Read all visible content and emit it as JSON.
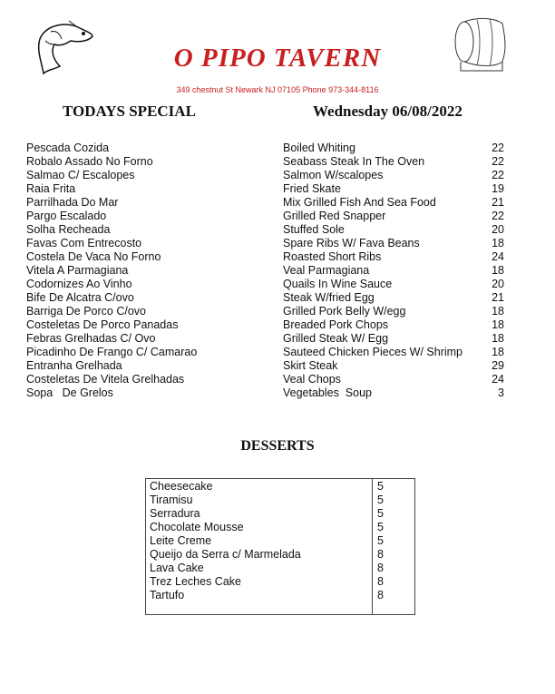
{
  "header": {
    "title": "O PIPO TAVERN",
    "address": "349 chestnut St Newark NJ 07105 Phone 973-344-8116",
    "section": "TODAYS SPECIAL",
    "date": "Wednesday 06/08/2022"
  },
  "specials": [
    {
      "pt": "Pescada Cozida",
      "en": "Boiled Whiting",
      "price": "22"
    },
    {
      "pt": "Robalo Assado No Forno",
      "en": "Seabass Steak In The Oven",
      "price": "22"
    },
    {
      "pt": "Salmao C/ Escalopes",
      "en": "Salmon W/scalopes",
      "price": "22"
    },
    {
      "pt": "Raia Frita",
      "en": "Fried Skate",
      "price": "19"
    },
    {
      "pt": "Parrilhada Do Mar",
      "en": "Mix Grilled Fish And Sea Food",
      "price": "21"
    },
    {
      "pt": "Pargo Escalado",
      "en": "Grilled Red Snapper",
      "price": "22"
    },
    {
      "pt": "Solha Recheada",
      "en": "Stuffed Sole",
      "price": "20"
    },
    {
      "pt": "Favas Com Entrecosto",
      "en": "Spare Ribs W/ Fava Beans",
      "price": "18"
    },
    {
      "pt": "Costela De Vaca No Forno",
      "en": "Roasted Short Ribs",
      "price": "24"
    },
    {
      "pt": "Vitela A Parmagiana",
      "en": "Veal Parmagiana",
      "price": "18"
    },
    {
      "pt": "Codornizes Ao Vinho",
      "en": "Quails In Wine Sauce",
      "price": "20"
    },
    {
      "pt": "Bife De Alcatra C/ovo",
      "en": "Steak W/fried Egg",
      "price": "21"
    },
    {
      "pt": "Barriga De Porco C/ovo",
      "en": "Grilled Pork Belly W/egg",
      "price": "18"
    },
    {
      "pt": "Costeletas De Porco Panadas",
      "en": "Breaded Pork Chops",
      "price": "18"
    },
    {
      "pt": "Febras Grelhadas C/ Ovo",
      "en": "Grilled Steak W/ Egg",
      "price": "18"
    },
    {
      "pt": "Picadinho De Frango C/ Camarao",
      "en": "Sauteed Chicken Pieces W/ Shrimp",
      "price": "18"
    },
    {
      "pt": "Entranha Grelhada",
      "en": "Skirt Steak",
      "price": "29"
    },
    {
      "pt": "Costeletas De Vitela Grelhadas",
      "en": "Veal Chops",
      "price": "24"
    },
    {
      "pt": "Sopa   De Grelos",
      "en": "Vegetables  Soup",
      "price": "3"
    }
  ],
  "desserts": {
    "title": "DESSERTS",
    "items": [
      {
        "name": "Cheesecake",
        "price": "5"
      },
      {
        "name": "Tiramisu",
        "price": "5"
      },
      {
        "name": "Serradura",
        "price": "5"
      },
      {
        "name": "Chocolate Mousse",
        "price": "5"
      },
      {
        "name": "Leite Creme",
        "price": "5"
      },
      {
        "name": "Queijo da Serra c/ Marmelada",
        "price": "8"
      },
      {
        "name": "Lava Cake",
        "price": "8"
      },
      {
        "name": "Trez Leches Cake",
        "price": "8"
      },
      {
        "name": "Tartufo",
        "price": "8"
      }
    ]
  },
  "colors": {
    "brand": "#c8201f"
  },
  "icons": [
    "fish-icon",
    "barrel-icon"
  ]
}
